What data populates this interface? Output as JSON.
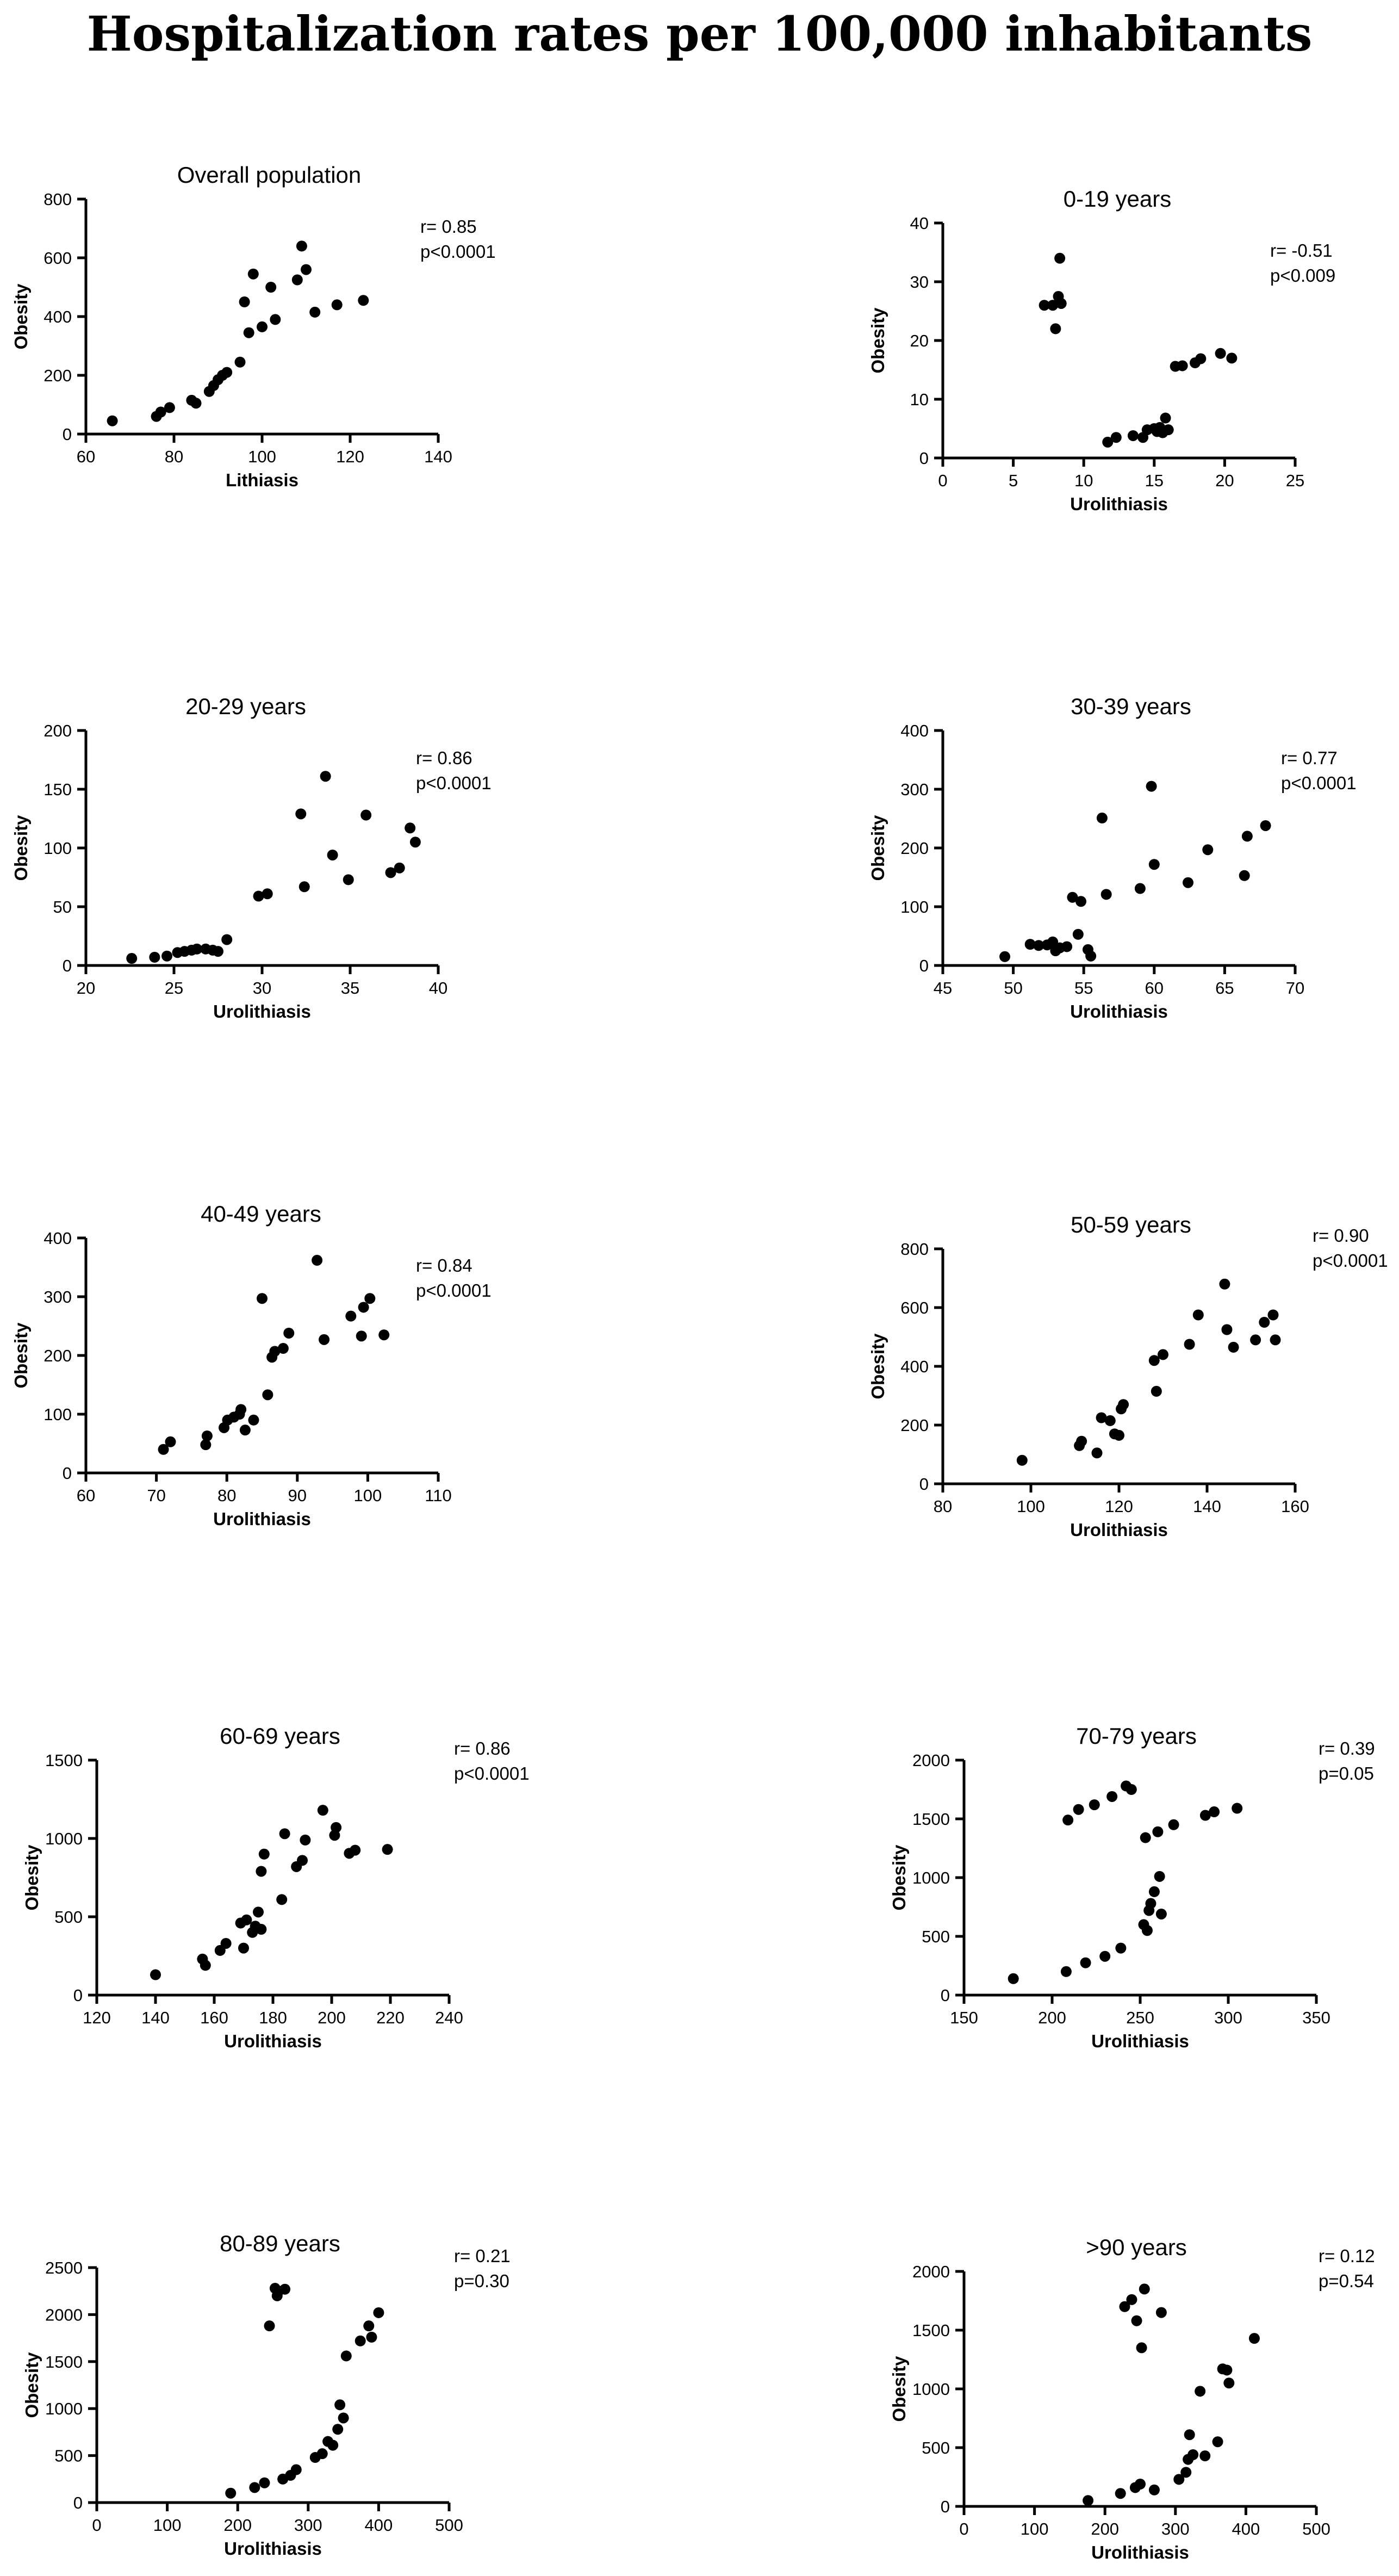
{
  "title": "Hospitalization rates per 100,000 inhabitants",
  "chart_data": [
    {
      "type": "scatter",
      "title": "Overall population",
      "xlabel": "Lithiasis",
      "ylabel": "Obesity",
      "xlim": [
        60,
        140
      ],
      "ylim": [
        0,
        800
      ],
      "xticks": [
        60,
        80,
        100,
        120,
        140
      ],
      "yticks": [
        0,
        200,
        400,
        600,
        800
      ],
      "stats": [
        "r= 0.85",
        "p<0.0001"
      ],
      "x": [
        66,
        76,
        77,
        79,
        84,
        85,
        88,
        89,
        90,
        91,
        92,
        95,
        96,
        97,
        98,
        100,
        102,
        103,
        108,
        109,
        110,
        112,
        117,
        123
      ],
      "y": [
        45,
        60,
        75,
        90,
        115,
        105,
        145,
        165,
        185,
        200,
        210,
        245,
        450,
        345,
        545,
        365,
        500,
        390,
        525,
        640,
        560,
        415,
        440,
        455
      ]
    },
    {
      "type": "scatter",
      "title": "0-19 years",
      "xlabel": "Urolithiasis",
      "ylabel": "Obesity",
      "xlim": [
        0,
        25
      ],
      "ylim": [
        0,
        40
      ],
      "xticks": [
        0,
        5,
        10,
        15,
        20,
        25
      ],
      "yticks": [
        0,
        10,
        20,
        30,
        40
      ],
      "stats": [
        "r= -0.51",
        "p<0.009"
      ],
      "x": [
        7.2,
        7.8,
        8.0,
        8.2,
        8.3,
        8.4,
        11.7,
        12.3,
        13.5,
        14.2,
        14.5,
        15.0,
        15.2,
        15.4,
        15.6,
        15.8,
        16.0,
        16.5,
        17.0,
        17.9,
        18.3,
        19.7,
        20.5
      ],
      "y": [
        26,
        26,
        22,
        27.5,
        34,
        26.3,
        2.7,
        3.5,
        3.8,
        3.5,
        4.8,
        5.0,
        4.5,
        5.2,
        4.3,
        6.8,
        4.8,
        15.6,
        15.7,
        16.2,
        16.9,
        17.8,
        17.0
      ]
    },
    {
      "type": "scatter",
      "title": "20-29 years",
      "xlabel": "Urolithiasis",
      "ylabel": "Obesity",
      "xlim": [
        20,
        40
      ],
      "ylim": [
        0,
        200
      ],
      "xticks": [
        20,
        25,
        30,
        35,
        40
      ],
      "yticks": [
        0,
        50,
        100,
        150,
        200
      ],
      "stats": [
        "r= 0.86",
        "p<0.0001"
      ],
      "x": [
        22.6,
        23.9,
        24.6,
        25.2,
        25.6,
        26.0,
        26.3,
        26.8,
        27.2,
        27.5,
        28.0,
        29.8,
        30.3,
        32.2,
        32.4,
        33.6,
        34.0,
        34.9,
        35.9,
        37.3,
        37.8,
        38.4,
        38.7
      ],
      "y": [
        6,
        7,
        8,
        11,
        12,
        13,
        14,
        14,
        13,
        12,
        22,
        59,
        61,
        129,
        67,
        161,
        94,
        73,
        128,
        79,
        83,
        117,
        105
      ]
    },
    {
      "type": "scatter",
      "title": "30-39 years",
      "xlabel": "Urolithiasis",
      "ylabel": "Obesity",
      "xlim": [
        45,
        70
      ],
      "ylim": [
        0,
        400
      ],
      "xticks": [
        45,
        50,
        55,
        60,
        65,
        70
      ],
      "yticks": [
        0,
        100,
        200,
        300,
        400
      ],
      "stats": [
        "r= 0.77",
        "p<0.0001"
      ],
      "x": [
        49.4,
        51.2,
        51.8,
        52.4,
        52.8,
        53.0,
        53.3,
        53.8,
        54.2,
        54.6,
        54.8,
        55.3,
        55.5,
        56.3,
        56.6,
        59.0,
        59.8,
        60.0,
        62.4,
        63.8,
        66.4,
        66.6,
        67.9
      ],
      "y": [
        15,
        36,
        34,
        35,
        40,
        25,
        30,
        32,
        116,
        53,
        109,
        27,
        16,
        251,
        121,
        131,
        305,
        172,
        141,
        197,
        153,
        220,
        238
      ]
    },
    {
      "type": "scatter",
      "title": "40-49 years",
      "xlabel": "Urolithiasis",
      "ylabel": "Obesity",
      "xlim": [
        60,
        110
      ],
      "ylim": [
        0,
        400
      ],
      "xticks": [
        60,
        70,
        80,
        90,
        100,
        110
      ],
      "yticks": [
        0,
        100,
        200,
        300,
        400
      ],
      "stats": [
        "r= 0.84",
        "p<0.0001"
      ],
      "x": [
        71,
        72,
        77,
        77.2,
        79.6,
        80.1,
        81,
        81.8,
        82,
        82.6,
        83.8,
        85,
        85.8,
        86.4,
        86.8,
        88,
        88.8,
        92.8,
        93.8,
        97.6,
        99.1,
        99.4,
        100.3,
        102.3
      ],
      "y": [
        40,
        53,
        48,
        63,
        77,
        90,
        95,
        100,
        108,
        73,
        90,
        297,
        133,
        197,
        207,
        212,
        238,
        362,
        227,
        267,
        233,
        282,
        297,
        235
      ]
    },
    {
      "type": "scatter",
      "title": "50-59 years",
      "xlabel": "Urolithiasis",
      "ylabel": "Obesity",
      "xlim": [
        80,
        160
      ],
      "ylim": [
        0,
        800
      ],
      "xticks": [
        80,
        100,
        120,
        140,
        160
      ],
      "yticks": [
        0,
        200,
        400,
        600,
        800
      ],
      "stats": [
        "r= 0.90",
        "p<0.0001"
      ],
      "x": [
        98,
        111,
        111.5,
        115,
        116,
        118,
        119,
        120,
        120.5,
        121,
        128,
        128.5,
        130,
        136,
        138,
        144,
        144.5,
        146,
        151,
        153,
        155,
        155.5
      ],
      "y": [
        80,
        130,
        145,
        105,
        225,
        215,
        170,
        165,
        255,
        270,
        420,
        315,
        440,
        475,
        575,
        680,
        525,
        465,
        490,
        550,
        575,
        490
      ]
    },
    {
      "type": "scatter",
      "title": "60-69 years",
      "xlabel": "Urolithiasis",
      "ylabel": "Obesity",
      "xlim": [
        120,
        240
      ],
      "ylim": [
        0,
        1500
      ],
      "xticks": [
        120,
        140,
        160,
        180,
        200,
        220,
        240
      ],
      "yticks": [
        0,
        500,
        1000,
        1500
      ],
      "stats": [
        "r= 0.86",
        "p<0.0001"
      ],
      "x": [
        140,
        156,
        157,
        162,
        164,
        169,
        170,
        171,
        173,
        174,
        175,
        176,
        177,
        176,
        183,
        184,
        188,
        190,
        191,
        197,
        201,
        201.5,
        206,
        208,
        219
      ],
      "y": [
        130,
        230,
        190,
        285,
        330,
        460,
        300,
        480,
        400,
        440,
        530,
        420,
        900,
        790,
        610,
        1030,
        820,
        860,
        990,
        1180,
        1020,
        1070,
        905,
        925,
        930
      ]
    },
    {
      "type": "scatter",
      "title": "70-79 years",
      "xlabel": "Urolithiasis",
      "ylabel": "Obesity",
      "xlim": [
        150,
        350
      ],
      "ylim": [
        0,
        2000
      ],
      "xticks": [
        150,
        200,
        250,
        300,
        350
      ],
      "yticks": [
        0,
        500,
        1000,
        1500,
        2000
      ],
      "stats": [
        "r= 0.39",
        "p=0.05"
      ],
      "x": [
        178,
        208,
        209,
        215,
        219,
        224,
        230,
        234,
        239,
        242,
        245,
        252,
        253,
        254,
        255,
        256,
        258,
        260,
        261,
        262,
        269,
        287,
        292,
        305
      ],
      "y": [
        140,
        200,
        1490,
        1580,
        275,
        1620,
        330,
        1690,
        400,
        1780,
        1750,
        600,
        1340,
        550,
        720,
        780,
        880,
        1390,
        1010,
        690,
        1450,
        1530,
        1560,
        1590
      ]
    },
    {
      "type": "scatter",
      "title": "80-89 years",
      "xlabel": "Urolithiasis",
      "ylabel": "Obesity",
      "xlim": [
        0,
        500
      ],
      "ylim": [
        0,
        2500
      ],
      "xticks": [
        0,
        100,
        200,
        300,
        400,
        500
      ],
      "yticks": [
        0,
        500,
        1000,
        1500,
        2000,
        2500
      ],
      "stats": [
        "r= 0.21",
        "p=0.30"
      ],
      "x": [
        190,
        224,
        238,
        245,
        253,
        256,
        258,
        264,
        267,
        275,
        283,
        310,
        320,
        328,
        335,
        342,
        345,
        350,
        354,
        374,
        386,
        390,
        400
      ],
      "y": [
        100,
        160,
        210,
        1880,
        2280,
        2200,
        2250,
        250,
        2270,
        290,
        350,
        480,
        520,
        650,
        610,
        780,
        1040,
        900,
        1560,
        1720,
        1880,
        1760,
        2020
      ]
    },
    {
      "type": "scatter",
      "title": ">90 years",
      "xlabel": "Urolithiasis",
      "ylabel": "Obesity",
      "xlim": [
        0,
        500
      ],
      "ylim": [
        0,
        2000
      ],
      "xticks": [
        0,
        100,
        200,
        300,
        400,
        500
      ],
      "yticks": [
        0,
        500,
        1000,
        1500,
        2000
      ],
      "stats": [
        "r= 0.12",
        "p=0.54"
      ],
      "x": [
        176,
        222,
        228,
        238,
        243,
        245,
        250,
        252,
        256,
        270,
        280,
        305,
        315,
        318,
        320,
        325,
        335,
        342,
        360,
        367,
        373,
        376,
        412
      ],
      "y": [
        50,
        110,
        1700,
        1760,
        160,
        1580,
        190,
        1350,
        1850,
        140,
        1650,
        230,
        290,
        400,
        610,
        440,
        980,
        430,
        550,
        1170,
        1160,
        1050,
        1430
      ]
    }
  ]
}
